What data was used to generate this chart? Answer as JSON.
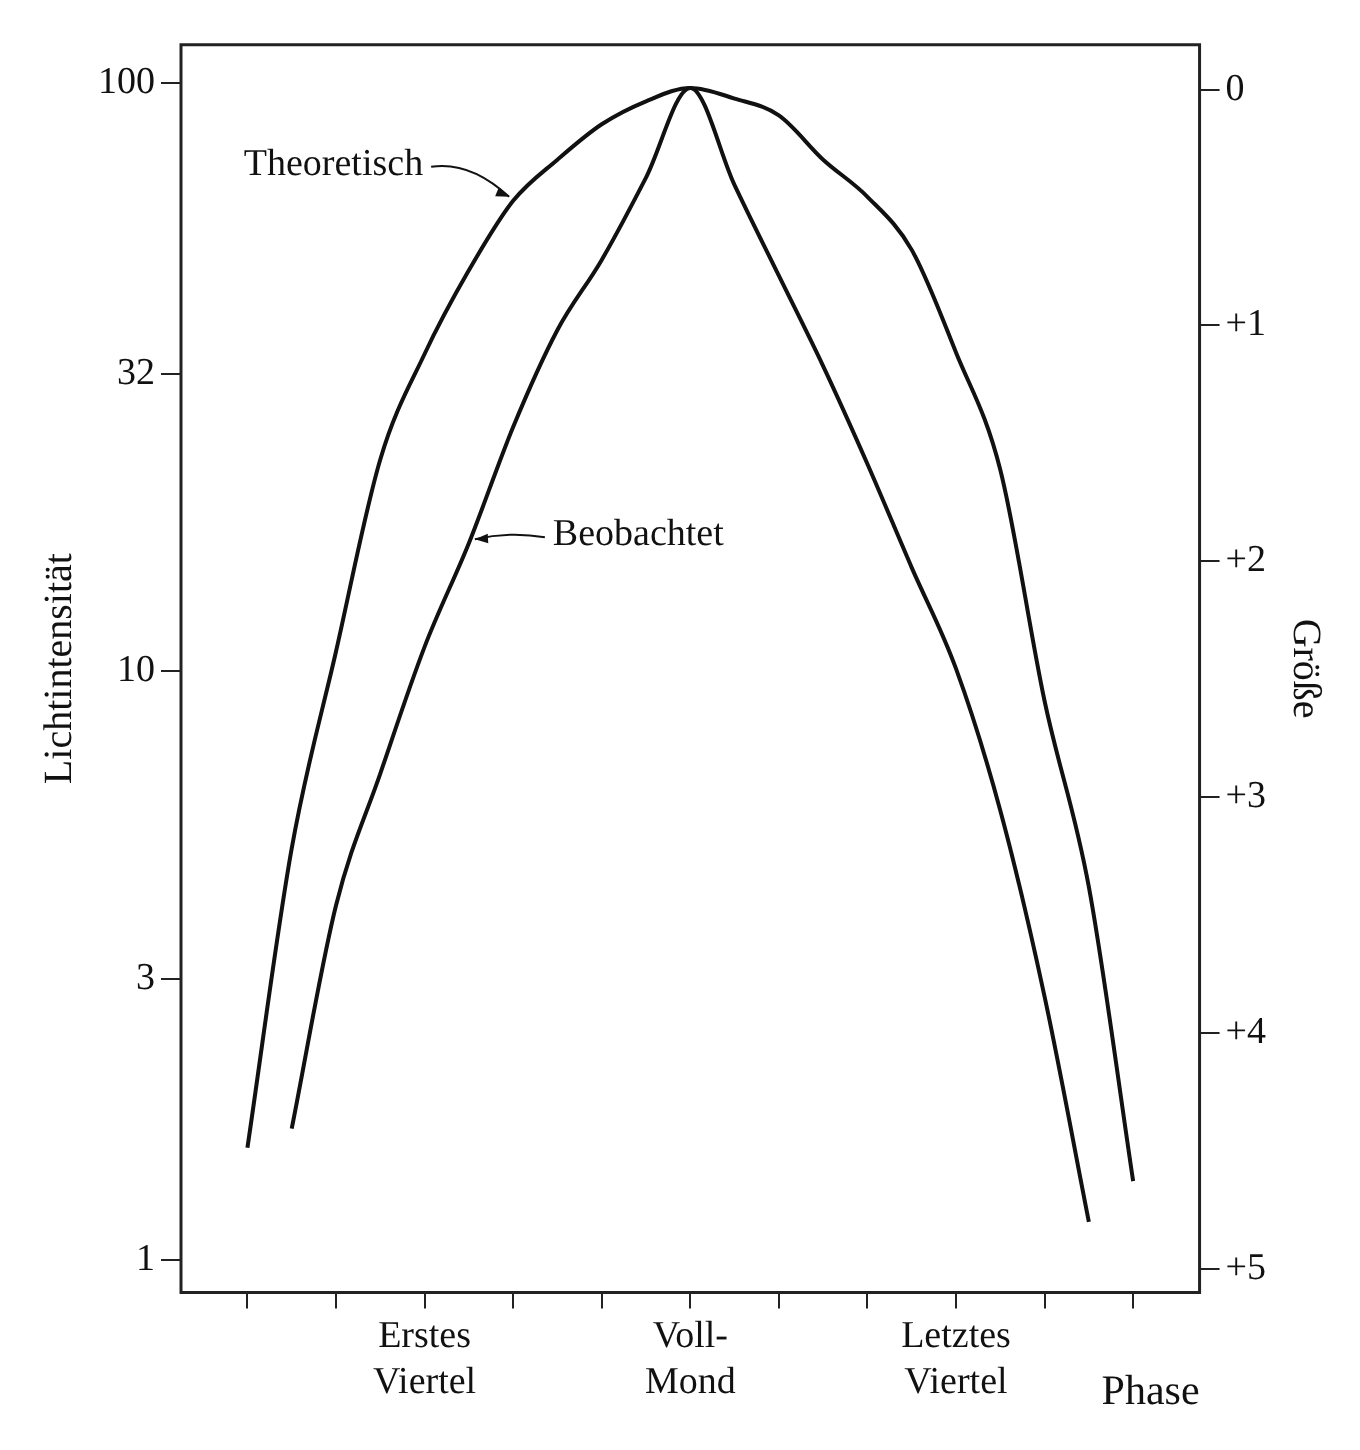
{
  "chart_data": {
    "type": "line",
    "xlabel": "Phase",
    "ylabel": "Lichtintensität",
    "y2label": "Größe",
    "log": "y",
    "marker": "none",
    "line_style": "solid",
    "categories": [
      null,
      null,
      null,
      null,
      null,
      "Erstes Viertel",
      null,
      null,
      null,
      null,
      null,
      "Voll-Mond",
      null,
      null,
      null,
      null,
      null,
      "Letztes Viertel",
      null,
      null,
      null,
      null,
      null
    ],
    "ylim": [
      0.88,
      116
    ],
    "yticks": [
      1,
      3,
      10,
      32,
      100
    ],
    "y2lim": [
      5.1,
      -0.19
    ],
    "y2ticks": [
      0,
      {
        "value": 1,
        "label": "+1"
      },
      {
        "value": 2,
        "label": "+2"
      },
      {
        "value": 3,
        "label": "+3"
      },
      {
        "value": 4,
        "label": "+4"
      },
      {
        "value": 5,
        "label": "+5"
      }
    ],
    "series": [
      {
        "name": "Theoretisch",
        "color": "#111111",
        "values": [
          null,
          1.55,
          5.0,
          10.8,
          22.9,
          34.6,
          48,
          63,
          74,
          85,
          93,
          98,
          94,
          88,
          74,
          64,
          52,
          34.8,
          22,
          8.9,
          4.3,
          1.36,
          null
        ]
      },
      {
        "name": "Beobachtet",
        "color": "#111111",
        "values": [
          null,
          null,
          1.67,
          4.0,
          6.7,
          11,
          16.5,
          26,
          38,
          50,
          69,
          98,
          67,
          47,
          33,
          22.5,
          15,
          10.1,
          5.8,
          2.8,
          1.16,
          null,
          null
        ]
      }
    ]
  }
}
